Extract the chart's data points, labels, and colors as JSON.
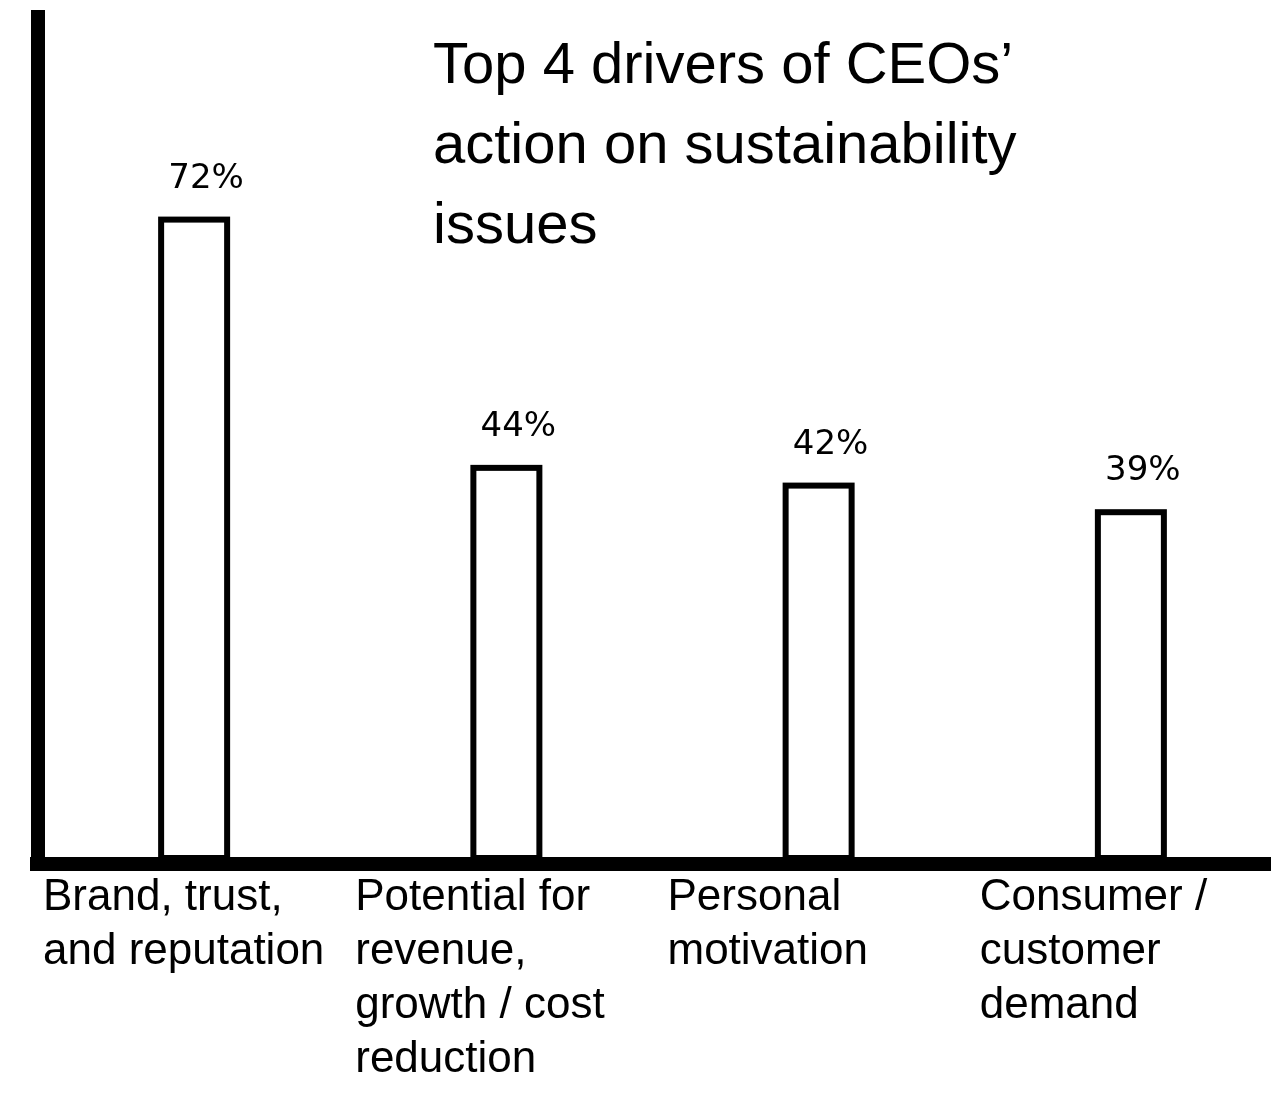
{
  "chart_data": {
    "type": "bar",
    "title": "Top 4 drivers of CEOs’ action on sustainability issues",
    "categories": [
      "Brand, trust, and reputation",
      "Potential for revenue, growth / cost reduction",
      "Personal motivation",
      "Consumer / customer demand"
    ],
    "values": [
      72,
      44,
      42,
      39
    ],
    "value_labels": [
      "72%",
      "44%",
      "42%",
      "39%"
    ],
    "color": "#ffffff"
  }
}
